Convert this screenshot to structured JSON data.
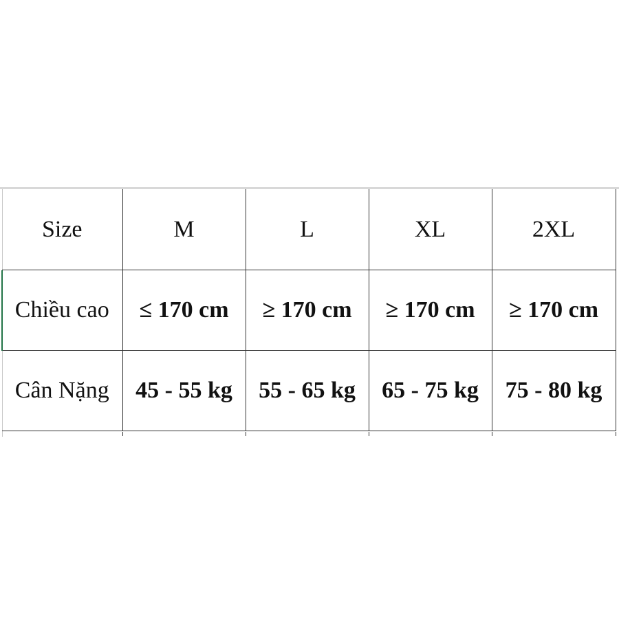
{
  "table": {
    "rows": [
      {
        "label": "Size",
        "cells": [
          "M",
          "L",
          "XL",
          "2XL"
        ]
      },
      {
        "label": "Chiều cao",
        "cells": [
          "≤ 170 cm",
          "≥ 170 cm",
          "≥ 170 cm",
          "≥ 170 cm"
        ]
      },
      {
        "label": "Cân Nặng",
        "cells": [
          "45 - 55 kg",
          "55 - 65 kg",
          "65 - 75 kg",
          "75 - 80 kg"
        ]
      }
    ]
  },
  "colors": {
    "selection": "#217346",
    "grid": "#333333"
  }
}
